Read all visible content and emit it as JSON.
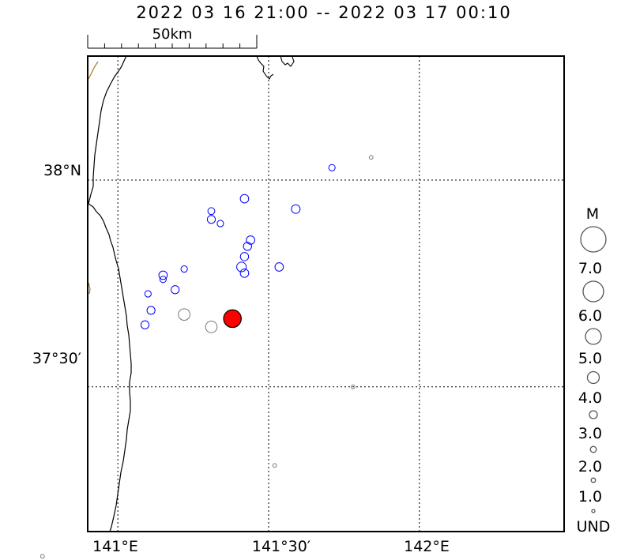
{
  "title": "2022 03 16 21:00 -- 2022 03 17 00:10",
  "scale_bar": {
    "label": "50km"
  },
  "axes": {
    "lat_labels": [
      "38°N",
      "37°30′"
    ],
    "lon_labels": [
      "141°E",
      "141°30′",
      "142°E"
    ],
    "lat_lines": [
      38.0,
      37.5
    ],
    "lon_lines": [
      141.0,
      141.5,
      142.0
    ],
    "lat_range": [
      37.15,
      38.3
    ],
    "lon_range": [
      140.9,
      142.48
    ],
    "grid": "dotted"
  },
  "legend": {
    "title": "M",
    "labels": [
      "7.0",
      "6.0",
      "5.0",
      "4.0",
      "3.0",
      "2.0",
      "1.0",
      "UND"
    ]
  },
  "colors": {
    "blue_events": "#0000ff",
    "gray_events": "#777777",
    "mainshock_fill": "#ff0000",
    "river": "#b07020"
  },
  "events": [
    {
      "lon": 141.84,
      "lat": 38.055,
      "mag": 0.5,
      "color": "gray"
    },
    {
      "lon": 141.71,
      "lat": 38.03,
      "mag": 2.5,
      "color": "blue"
    },
    {
      "lon": 141.42,
      "lat": 37.955,
      "mag": 3.6,
      "color": "blue"
    },
    {
      "lon": 141.59,
      "lat": 37.93,
      "mag": 3.7,
      "color": "blue"
    },
    {
      "lon": 141.31,
      "lat": 37.925,
      "mag": 2.8,
      "color": "blue"
    },
    {
      "lon": 141.31,
      "lat": 37.905,
      "mag": 3.4,
      "color": "blue"
    },
    {
      "lon": 141.34,
      "lat": 37.895,
      "mag": 2.5,
      "color": "blue"
    },
    {
      "lon": 141.44,
      "lat": 37.855,
      "mag": 3.6,
      "color": "blue"
    },
    {
      "lon": 141.43,
      "lat": 37.84,
      "mag": 3.5,
      "color": "blue"
    },
    {
      "lon": 141.42,
      "lat": 37.815,
      "mag": 3.5,
      "color": "blue"
    },
    {
      "lon": 141.535,
      "lat": 37.79,
      "mag": 3.6,
      "color": "blue"
    },
    {
      "lon": 141.41,
      "lat": 37.79,
      "mag": 4.1,
      "color": "blue"
    },
    {
      "lon": 141.42,
      "lat": 37.775,
      "mag": 3.6,
      "color": "blue"
    },
    {
      "lon": 141.22,
      "lat": 37.785,
      "mag": 2.5,
      "color": "blue"
    },
    {
      "lon": 141.15,
      "lat": 37.77,
      "mag": 3.6,
      "color": "blue"
    },
    {
      "lon": 141.15,
      "lat": 37.76,
      "mag": 2.5,
      "color": "blue"
    },
    {
      "lon": 141.19,
      "lat": 37.735,
      "mag": 3.4,
      "color": "blue"
    },
    {
      "lon": 141.1,
      "lat": 37.725,
      "mag": 2.5,
      "color": "blue"
    },
    {
      "lon": 141.11,
      "lat": 37.685,
      "mag": 3.4,
      "color": "blue"
    },
    {
      "lon": 141.09,
      "lat": 37.65,
      "mag": 3.4,
      "color": "blue"
    },
    {
      "lon": 141.22,
      "lat": 37.675,
      "mag": 4.8,
      "color": "gray"
    },
    {
      "lon": 141.31,
      "lat": 37.645,
      "mag": 4.8,
      "color": "gray"
    },
    {
      "lon": 141.38,
      "lat": 37.665,
      "mag": 6.3,
      "color": "red"
    },
    {
      "lon": 141.78,
      "lat": 37.5,
      "mag": 0.5,
      "color": "gray"
    },
    {
      "lon": 141.52,
      "lat": 37.31,
      "mag": 0.5,
      "color": "gray"
    },
    {
      "lon": 140.75,
      "lat": 37.09,
      "mag": 0.5,
      "color": "gray"
    }
  ]
}
